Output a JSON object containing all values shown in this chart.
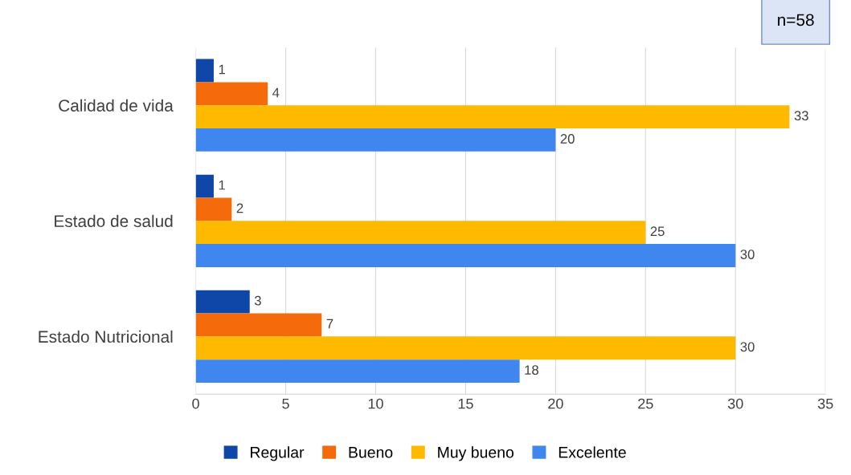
{
  "chart_data": {
    "type": "bar",
    "orientation": "horizontal",
    "categories": [
      "Calidad de vida",
      "Estado de salud",
      "Estado Nutricional"
    ],
    "series": [
      {
        "name": "Regular",
        "color": "#0f47a8",
        "values": [
          1,
          1,
          3
        ]
      },
      {
        "name": "Bueno",
        "color": "#f56a0a",
        "values": [
          4,
          2,
          7
        ]
      },
      {
        "name": "Muy bueno",
        "color": "#ffb900",
        "values": [
          33,
          25,
          30
        ]
      },
      {
        "name": "Excelente",
        "color": "#3f86ef",
        "values": [
          20,
          30,
          18
        ]
      }
    ],
    "xlim": [
      0,
      35
    ],
    "xticks": [
      0,
      5,
      10,
      15,
      20,
      25,
      30,
      35
    ],
    "grid": "x",
    "legend": "bottom",
    "data_labels": true,
    "annotations": [
      "n=58"
    ]
  }
}
